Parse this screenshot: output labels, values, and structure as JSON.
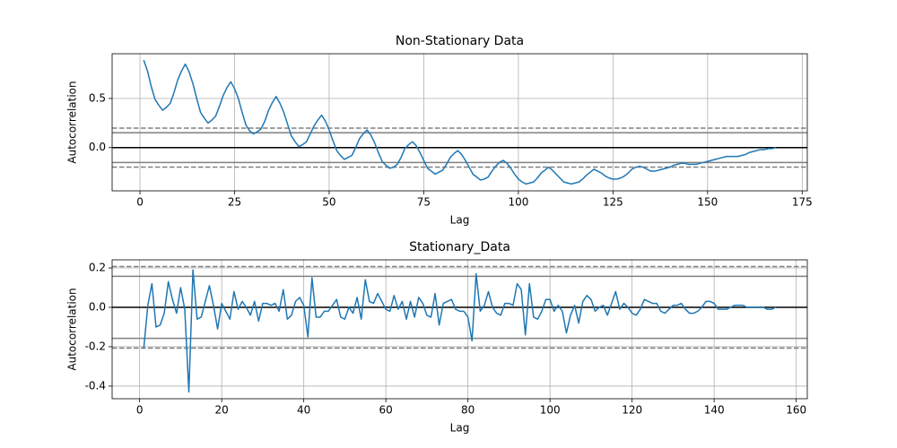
{
  "chart_data": [
    {
      "type": "line",
      "title": "Non-Stationary Data",
      "xlabel": "Lag",
      "ylabel": "Autocorrelation",
      "color": "#1f77b4",
      "grid": true,
      "xlim": [
        -7.35,
        176.35
      ],
      "ylim": [
        -0.44,
        0.955
      ],
      "xticks": [
        0,
        25,
        50,
        75,
        100,
        125,
        150,
        175
      ],
      "yticks": [
        {
          "value": 0,
          "label": "0.0"
        },
        0.5
      ],
      "confidence_lines": {
        "dashed": [
          0.1987,
          -0.1987
        ],
        "solid": [
          0.1512,
          -0.1512
        ]
      },
      "x": [
        1,
        2,
        3,
        4,
        5,
        6,
        7,
        8,
        9,
        10,
        11,
        12,
        13,
        14,
        15,
        16,
        17,
        18,
        19,
        20,
        21,
        22,
        23,
        24,
        25,
        26,
        27,
        28,
        29,
        30,
        31,
        32,
        33,
        34,
        35,
        36,
        37,
        38,
        39,
        40,
        41,
        42,
        43,
        44,
        45,
        46,
        47,
        48,
        49,
        50,
        51,
        52,
        53,
        54,
        55,
        56,
        57,
        58,
        59,
        60,
        61,
        62,
        63,
        64,
        65,
        66,
        67,
        68,
        69,
        70,
        71,
        72,
        73,
        74,
        75,
        76,
        77,
        78,
        79,
        80,
        81,
        82,
        83,
        84,
        85,
        86,
        87,
        88,
        89,
        90,
        91,
        92,
        93,
        94,
        95,
        96,
        97,
        98,
        99,
        100,
        101,
        102,
        103,
        104,
        105,
        106,
        107,
        108,
        109,
        110,
        111,
        112,
        113,
        114,
        115,
        116,
        117,
        118,
        119,
        120,
        121,
        122,
        123,
        124,
        125,
        126,
        127,
        128,
        129,
        130,
        131,
        132,
        133,
        134,
        135,
        136,
        137,
        138,
        139,
        140,
        141,
        142,
        143,
        144,
        145,
        146,
        147,
        148,
        149,
        150,
        151,
        152,
        153,
        154,
        155,
        156,
        157,
        158,
        159,
        160,
        161,
        162,
        163,
        164,
        165,
        166,
        167,
        168
      ],
      "values": [
        0.89,
        0.78,
        0.62,
        0.49,
        0.43,
        0.38,
        0.41,
        0.45,
        0.56,
        0.69,
        0.78,
        0.85,
        0.77,
        0.65,
        0.5,
        0.36,
        0.3,
        0.25,
        0.28,
        0.32,
        0.42,
        0.53,
        0.61,
        0.67,
        0.6,
        0.5,
        0.36,
        0.23,
        0.17,
        0.14,
        0.16,
        0.19,
        0.27,
        0.38,
        0.46,
        0.52,
        0.45,
        0.36,
        0.24,
        0.12,
        0.06,
        0.01,
        0.03,
        0.06,
        0.14,
        0.22,
        0.28,
        0.33,
        0.27,
        0.18,
        0.07,
        -0.03,
        -0.08,
        -0.12,
        -0.1,
        -0.08,
        0.0,
        0.09,
        0.14,
        0.18,
        0.13,
        0.05,
        -0.05,
        -0.14,
        -0.18,
        -0.21,
        -0.2,
        -0.17,
        -0.1,
        -0.01,
        0.03,
        0.06,
        0.02,
        -0.05,
        -0.13,
        -0.21,
        -0.24,
        -0.27,
        -0.25,
        -0.23,
        -0.17,
        -0.1,
        -0.06,
        -0.03,
        -0.07,
        -0.13,
        -0.2,
        -0.27,
        -0.3,
        -0.33,
        -0.32,
        -0.3,
        -0.24,
        -0.19,
        -0.15,
        -0.13,
        -0.16,
        -0.21,
        -0.27,
        -0.32,
        -0.35,
        -0.37,
        -0.36,
        -0.35,
        -0.31,
        -0.26,
        -0.23,
        -0.2,
        -0.23,
        -0.27,
        -0.31,
        -0.35,
        -0.36,
        -0.37,
        -0.36,
        -0.35,
        -0.32,
        -0.28,
        -0.25,
        -0.22,
        -0.24,
        -0.26,
        -0.29,
        -0.31,
        -0.32,
        -0.32,
        -0.31,
        -0.29,
        -0.26,
        -0.22,
        -0.2,
        -0.19,
        -0.2,
        -0.22,
        -0.24,
        -0.24,
        -0.23,
        -0.22,
        -0.21,
        -0.2,
        -0.18,
        -0.17,
        -0.16,
        -0.16,
        -0.17,
        -0.17,
        -0.17,
        -0.16,
        -0.15,
        -0.14,
        -0.13,
        -0.12,
        -0.11,
        -0.1,
        -0.09,
        -0.09,
        -0.09,
        -0.09,
        -0.08,
        -0.07,
        -0.05,
        -0.04,
        -0.03,
        -0.02,
        -0.02,
        -0.01,
        -0.01,
        0.0
      ]
    },
    {
      "type": "line",
      "title": "Stationary_Data",
      "xlabel": "Lag",
      "ylabel": "Autocorrelation",
      "color": "#1f77b4",
      "grid": true,
      "xlim": [
        -6.7,
        162.7
      ],
      "ylim": [
        -0.464,
        0.241
      ],
      "xticks": [
        0,
        20,
        40,
        60,
        80,
        100,
        120,
        140,
        160
      ],
      "yticks": [
        -0.4,
        -0.2,
        {
          "value": 0,
          "label": "0.0"
        },
        0.2
      ],
      "confidence_lines": {
        "dashed": [
          0.2069,
          -0.2069
        ],
        "solid": [
          0.1574,
          -0.1574
        ]
      },
      "x": [
        1,
        2,
        3,
        4,
        5,
        6,
        7,
        8,
        9,
        10,
        11,
        12,
        13,
        14,
        15,
        16,
        17,
        18,
        19,
        20,
        21,
        22,
        23,
        24,
        25,
        26,
        27,
        28,
        29,
        30,
        31,
        32,
        33,
        34,
        35,
        36,
        37,
        38,
        39,
        40,
        41,
        42,
        43,
        44,
        45,
        46,
        47,
        48,
        49,
        50,
        51,
        52,
        53,
        54,
        55,
        56,
        57,
        58,
        59,
        60,
        61,
        62,
        63,
        64,
        65,
        66,
        67,
        68,
        69,
        70,
        71,
        72,
        73,
        74,
        75,
        76,
        77,
        78,
        79,
        80,
        81,
        82,
        83,
        84,
        85,
        86,
        87,
        88,
        89,
        90,
        91,
        92,
        93,
        94,
        95,
        96,
        97,
        98,
        99,
        100,
        101,
        102,
        103,
        104,
        105,
        106,
        107,
        108,
        109,
        110,
        111,
        112,
        113,
        114,
        115,
        116,
        117,
        118,
        119,
        120,
        121,
        122,
        123,
        124,
        125,
        126,
        127,
        128,
        129,
        130,
        131,
        132,
        133,
        134,
        135,
        136,
        137,
        138,
        139,
        140,
        141,
        142,
        143,
        144,
        145,
        146,
        147,
        148,
        149,
        150,
        151,
        152,
        153,
        154,
        155
      ],
      "values": [
        -0.21,
        0.01,
        0.12,
        -0.1,
        -0.09,
        -0.03,
        0.13,
        0.04,
        -0.03,
        0.1,
        -0.01,
        -0.43,
        0.19,
        -0.06,
        -0.05,
        0.03,
        0.11,
        0.01,
        -0.11,
        0.02,
        -0.02,
        -0.06,
        0.08,
        -0.01,
        0.03,
        0.0,
        -0.04,
        0.03,
        -0.07,
        0.02,
        0.02,
        0.01,
        0.02,
        -0.02,
        0.09,
        -0.06,
        -0.04,
        0.03,
        0.05,
        0.01,
        -0.15,
        0.15,
        -0.05,
        -0.05,
        -0.02,
        -0.02,
        0.01,
        0.04,
        -0.05,
        -0.06,
        0.0,
        -0.03,
        0.05,
        -0.06,
        0.14,
        0.03,
        0.02,
        0.07,
        0.03,
        -0.01,
        -0.02,
        0.06,
        -0.01,
        0.03,
        -0.06,
        0.03,
        -0.05,
        0.05,
        0.02,
        -0.04,
        -0.05,
        0.07,
        -0.09,
        0.02,
        0.03,
        0.04,
        -0.01,
        -0.02,
        -0.02,
        -0.05,
        -0.17,
        0.17,
        -0.02,
        0.01,
        0.08,
        0.0,
        -0.03,
        -0.04,
        0.02,
        0.02,
        0.01,
        0.12,
        0.09,
        -0.14,
        0.12,
        -0.05,
        -0.06,
        -0.02,
        0.04,
        0.04,
        -0.02,
        0.01,
        -0.02,
        -0.13,
        -0.04,
        0.01,
        -0.08,
        0.03,
        0.06,
        0.04,
        -0.02,
        0.0,
        0.01,
        -0.04,
        0.02,
        0.08,
        -0.01,
        0.02,
        0.0,
        -0.03,
        -0.04,
        -0.01,
        0.04,
        0.03,
        0.02,
        0.02,
        -0.02,
        -0.03,
        -0.01,
        0.01,
        0.01,
        0.02,
        -0.01,
        -0.03,
        -0.03,
        -0.02,
        0.0,
        0.03,
        0.03,
        0.02,
        -0.01,
        -0.01,
        -0.01,
        0.0,
        0.01,
        0.01,
        0.01,
        0.0,
        0.0,
        0.0,
        0.0,
        0.0,
        -0.01,
        -0.01,
        0.0
      ]
    }
  ]
}
